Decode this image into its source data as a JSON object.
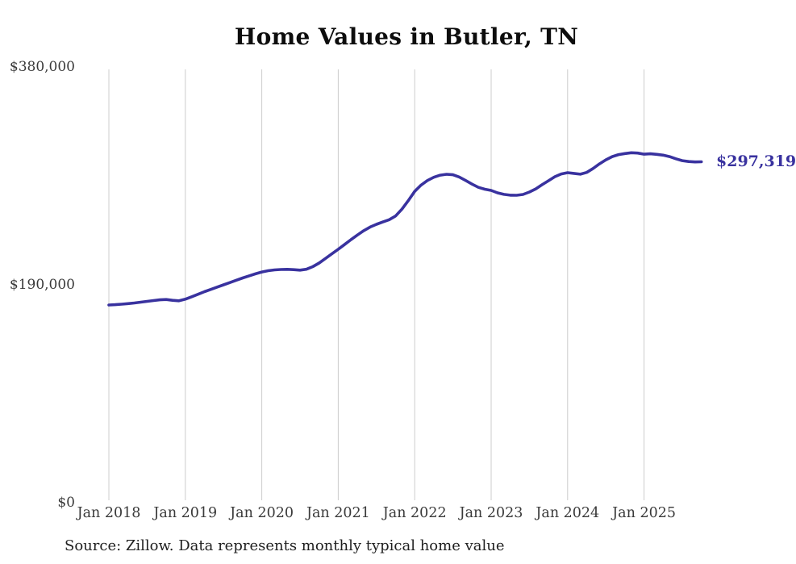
{
  "title": "Home Values in Butler, TN",
  "source_note": "Source: Zillow. Data represents monthly typical home value",
  "end_label": "$297,319",
  "colors": {
    "line": "#39329F",
    "grid": "#CCCCCC",
    "axis_text": "#3A3A3A",
    "title_text": "#0D0D0D"
  },
  "chart_data": {
    "type": "line",
    "title": "Home Values in Butler, TN",
    "series_name": "Monthly typical home value",
    "x_start": "2018-01",
    "x_end": "2025-10",
    "x_freq": "monthly",
    "x_tick_labels": [
      "Jan 2018",
      "Jan 2019",
      "Jan 2020",
      "Jan 2021",
      "Jan 2022",
      "Jan 2023",
      "Jan 2024",
      "Jan 2025"
    ],
    "y_ticks": [
      0,
      190000,
      380000
    ],
    "y_tick_labels": [
      "$0",
      "$190,000",
      "$380,000"
    ],
    "ylim": [
      0,
      380000
    ],
    "grid": "vertical-only",
    "legend": "none",
    "end_annotation": "$297,319",
    "values": [
      172400,
      172700,
      173100,
      173600,
      174200,
      174900,
      175600,
      176300,
      176900,
      177200,
      176500,
      176100,
      177500,
      179600,
      181800,
      184000,
      186000,
      188000,
      190000,
      192000,
      194000,
      196000,
      197800,
      199600,
      201200,
      202300,
      203000,
      203400,
      203500,
      203200,
      202800,
      203600,
      205800,
      209000,
      213000,
      217000,
      221000,
      225200,
      229400,
      233400,
      237200,
      240400,
      242800,
      244800,
      246800,
      250000,
      256000,
      263500,
      271500,
      277000,
      281000,
      283800,
      285600,
      286400,
      286000,
      284000,
      281000,
      277800,
      275000,
      273400,
      272300,
      270200,
      268900,
      268200,
      268100,
      268800,
      270900,
      273700,
      277300,
      280800,
      284300,
      286700,
      287800,
      287200,
      286500,
      288000,
      291500,
      295500,
      299000,
      301800,
      303600,
      304500,
      305200,
      304900,
      303900,
      304300,
      303800,
      303100,
      301800,
      299900,
      298300,
      297500,
      297200,
      297319
    ]
  }
}
